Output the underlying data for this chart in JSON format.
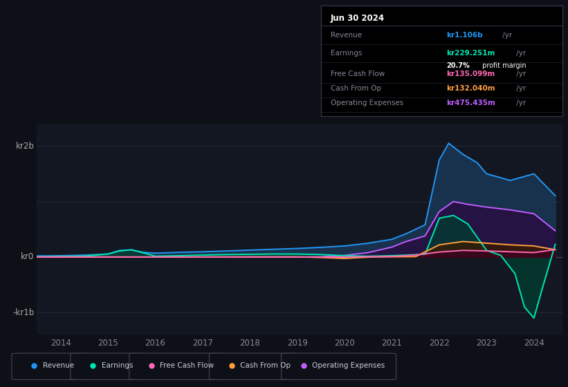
{
  "bg_color": "#131722",
  "plot_bg_color": "#131722",
  "outer_bg": "#0d1117",
  "grid_color": "#2a2e39",
  "title": "Jun 30 2024",
  "series": {
    "Revenue": {
      "color": "#2196f3",
      "fill_color": "#1a3a5c",
      "values_x": [
        2013.5,
        2014.0,
        2014.5,
        2015.0,
        2015.25,
        2015.5,
        2015.75,
        2016.0,
        2016.5,
        2017.0,
        2017.5,
        2018.0,
        2018.5,
        2019.0,
        2019.5,
        2020.0,
        2020.5,
        2021.0,
        2021.3,
        2021.7,
        2022.0,
        2022.2,
        2022.5,
        2022.8,
        2023.0,
        2023.5,
        2024.0,
        2024.45
      ],
      "values_y": [
        20000000.0,
        25000000.0,
        35000000.0,
        55000000.0,
        120000000.0,
        130000000.0,
        85000000.0,
        70000000.0,
        85000000.0,
        95000000.0,
        110000000.0,
        125000000.0,
        140000000.0,
        155000000.0,
        175000000.0,
        200000000.0,
        250000000.0,
        320000000.0,
        420000000.0,
        580000000.0,
        1750000000.0,
        2050000000.0,
        1850000000.0,
        1700000000.0,
        1500000000.0,
        1380000000.0,
        1500000000.0,
        1106000000.0
      ]
    },
    "Earnings": {
      "color": "#00e5b0",
      "fill_color": "#003d30",
      "values_x": [
        2013.5,
        2014.0,
        2014.5,
        2015.0,
        2015.25,
        2015.5,
        2015.75,
        2016.0,
        2016.5,
        2017.0,
        2017.5,
        2018.0,
        2018.5,
        2019.0,
        2019.5,
        2020.0,
        2020.5,
        2021.0,
        2021.3,
        2021.7,
        2022.0,
        2022.3,
        2022.6,
        2023.0,
        2023.3,
        2023.6,
        2023.8,
        2024.0,
        2024.2,
        2024.45
      ],
      "values_y": [
        5000000.0,
        8000000.0,
        15000000.0,
        55000000.0,
        110000000.0,
        130000000.0,
        75000000.0,
        15000000.0,
        25000000.0,
        35000000.0,
        45000000.0,
        50000000.0,
        55000000.0,
        55000000.0,
        45000000.0,
        25000000.0,
        15000000.0,
        25000000.0,
        35000000.0,
        50000000.0,
        700000000.0,
        750000000.0,
        600000000.0,
        120000000.0,
        30000000.0,
        -300000000.0,
        -900000000.0,
        -1100000000.0,
        -500000000.0,
        229000000.0
      ]
    },
    "OperatingExpenses": {
      "color": "#bf5fff",
      "fill_color": "#2a0a40",
      "values_x": [
        2013.5,
        2014.0,
        2015.0,
        2016.0,
        2017.0,
        2018.0,
        2019.0,
        2019.5,
        2020.0,
        2020.5,
        2021.0,
        2021.3,
        2021.7,
        2022.0,
        2022.3,
        2022.6,
        2023.0,
        2023.5,
        2024.0,
        2024.45
      ],
      "values_y": [
        0,
        0,
        0,
        0,
        0,
        0,
        0,
        5000000.0,
        30000000.0,
        80000000.0,
        180000000.0,
        280000000.0,
        380000000.0,
        820000000.0,
        1000000000.0,
        950000000.0,
        900000000.0,
        850000000.0,
        780000000.0,
        475000000.0
      ]
    },
    "CashFromOp": {
      "color": "#ffa040",
      "fill_color": "#3a1a00",
      "values_x": [
        2013.5,
        2014.0,
        2015.0,
        2015.5,
        2016.0,
        2017.0,
        2018.0,
        2019.0,
        2019.5,
        2020.0,
        2020.3,
        2020.6,
        2021.0,
        2021.5,
        2022.0,
        2022.5,
        2023.0,
        2023.5,
        2024.0,
        2024.45
      ],
      "values_y": [
        0,
        3000000.0,
        3000000.0,
        2000000.0,
        2000000.0,
        2000000.0,
        4000000.0,
        4000000.0,
        -8000000.0,
        -25000000.0,
        -10000000.0,
        2000000.0,
        5000000.0,
        8000000.0,
        220000000.0,
        280000000.0,
        250000000.0,
        220000000.0,
        200000000.0,
        132000000.0
      ]
    },
    "FreeCashFlow": {
      "color": "#ff69b4",
      "fill_color": "#3d0020",
      "values_x": [
        2013.5,
        2014.0,
        2015.0,
        2016.0,
        2017.0,
        2018.0,
        2019.0,
        2020.0,
        2021.0,
        2021.5,
        2022.0,
        2022.5,
        2023.0,
        2023.5,
        2024.0,
        2024.45
      ],
      "values_y": [
        0,
        0,
        0,
        0,
        0,
        0,
        0,
        0,
        10000000.0,
        35000000.0,
        90000000.0,
        120000000.0,
        110000000.0,
        95000000.0,
        80000000.0,
        135000000.0
      ]
    }
  },
  "info_box": {
    "title": "Jun 30 2024",
    "rows": [
      {
        "label": "Revenue",
        "value": "kr1.106b",
        "suffix": " /yr",
        "value_color": "#2196f3",
        "has_sub": false
      },
      {
        "label": "Earnings",
        "value": "kr229.251m",
        "suffix": " /yr",
        "value_color": "#00e5b0",
        "has_sub": true,
        "sub": "20.7%",
        "sub_suffix": " profit margin"
      },
      {
        "label": "Free Cash Flow",
        "value": "kr135.099m",
        "suffix": " /yr",
        "value_color": "#ff69b4",
        "has_sub": false
      },
      {
        "label": "Cash From Op",
        "value": "kr132.040m",
        "suffix": " /yr",
        "value_color": "#ffa040",
        "has_sub": false
      },
      {
        "label": "Operating Expenses",
        "value": "kr475.435m",
        "suffix": " /yr",
        "value_color": "#bf5fff",
        "has_sub": false
      }
    ]
  },
  "legend": [
    {
      "label": "Revenue",
      "color": "#2196f3"
    },
    {
      "label": "Earnings",
      "color": "#00e5b0"
    },
    {
      "label": "Free Cash Flow",
      "color": "#ff69b4"
    },
    {
      "label": "Cash From Op",
      "color": "#ffa040"
    },
    {
      "label": "Operating Expenses",
      "color": "#bf5fff"
    }
  ],
  "ylim": [
    -1400000000.0,
    2400000000.0
  ],
  "xlim": [
    2013.5,
    2024.6
  ],
  "ytick_vals": [
    -1000000000.0,
    0,
    2000000000.0
  ],
  "ytick_labels": [
    "-kr1b",
    "kr0",
    "kr2b"
  ],
  "xtick_vals": [
    2014,
    2015,
    2016,
    2017,
    2018,
    2019,
    2020,
    2021,
    2022,
    2023,
    2024
  ]
}
